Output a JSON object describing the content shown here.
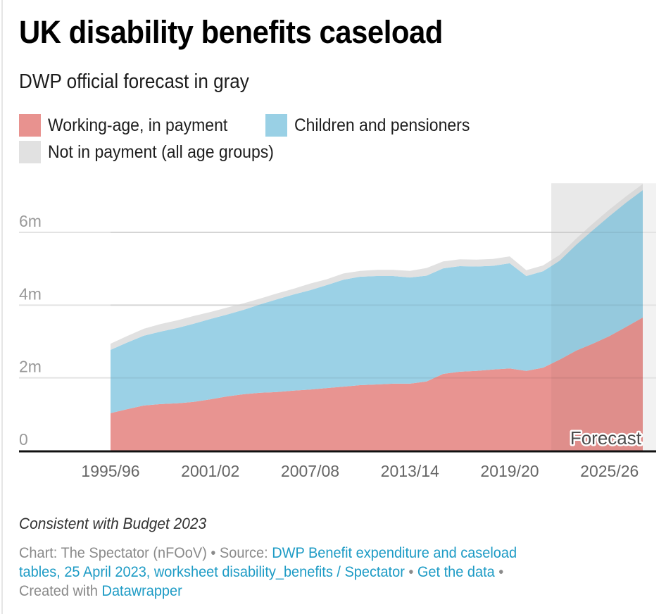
{
  "header": {
    "title": "UK disability benefits caseload",
    "subtitle": "DWP official forecast in gray"
  },
  "legend": [
    {
      "label": "Working-age, in payment",
      "color": "#e8928f"
    },
    {
      "label": "Children and pensioners",
      "color": "#99d0e5"
    },
    {
      "label": "Not in payment (all age groups)",
      "color": "#e1e1e1"
    }
  ],
  "chart_data": {
    "type": "area",
    "stacked": true,
    "title": "UK disability benefits caseload",
    "subtitle": "DWP official forecast in gray",
    "xlabel": "",
    "ylabel": "",
    "x": [
      "1995/96",
      "1996/97",
      "1997/98",
      "1998/99",
      "1999/00",
      "2000/01",
      "2001/02",
      "2002/03",
      "2003/04",
      "2004/05",
      "2005/06",
      "2006/07",
      "2007/08",
      "2008/09",
      "2009/10",
      "2010/11",
      "2011/12",
      "2012/13",
      "2013/14",
      "2014/15",
      "2015/16",
      "2016/17",
      "2017/18",
      "2018/19",
      "2019/20",
      "2020/21",
      "2021/22",
      "2022/23",
      "2023/24",
      "2024/25",
      "2025/26",
      "2026/27",
      "2027/28"
    ],
    "x_ticks": [
      "1995/96",
      "2001/02",
      "2007/08",
      "2013/14",
      "2019/20",
      "2025/26"
    ],
    "y_ticks": [
      {
        "value": 0,
        "label": "0"
      },
      {
        "value": 2,
        "label": "2m"
      },
      {
        "value": 4,
        "label": "4m"
      },
      {
        "value": 6,
        "label": "6m"
      }
    ],
    "ylim": [
      0,
      7.35
    ],
    "units": "millions",
    "grid": true,
    "legend_position": "top-left",
    "series": [
      {
        "name": "Working-age, in payment",
        "color": "#e8928f",
        "values": [
          1.03,
          1.14,
          1.24,
          1.28,
          1.3,
          1.34,
          1.41,
          1.49,
          1.55,
          1.59,
          1.61,
          1.65,
          1.68,
          1.72,
          1.76,
          1.8,
          1.82,
          1.84,
          1.84,
          1.9,
          2.11,
          2.17,
          2.19,
          2.23,
          2.26,
          2.19,
          2.28,
          2.5,
          2.75,
          2.94,
          3.15,
          3.4,
          3.66
        ]
      },
      {
        "name": "Children and pensioners",
        "color": "#99d0e5",
        "values": [
          1.74,
          1.83,
          1.92,
          1.99,
          2.07,
          2.15,
          2.21,
          2.25,
          2.32,
          2.43,
          2.55,
          2.64,
          2.73,
          2.83,
          2.94,
          2.98,
          2.98,
          2.96,
          2.92,
          2.91,
          2.9,
          2.9,
          2.87,
          2.85,
          2.89,
          2.61,
          2.65,
          2.72,
          2.91,
          3.12,
          3.3,
          3.42,
          3.5
        ]
      },
      {
        "name": "Not in payment (all age groups)",
        "color": "#e1e1e1",
        "values": [
          0.17,
          0.18,
          0.19,
          0.21,
          0.21,
          0.21,
          0.19,
          0.19,
          0.18,
          0.16,
          0.16,
          0.16,
          0.18,
          0.16,
          0.17,
          0.16,
          0.17,
          0.17,
          0.18,
          0.21,
          0.19,
          0.19,
          0.19,
          0.19,
          0.19,
          0.16,
          0.16,
          0.16,
          0.17,
          0.18,
          0.18,
          0.17,
          0.17
        ]
      }
    ],
    "annotations": [
      {
        "type": "shaded-range",
        "from": "2021/22",
        "to": "2027/28",
        "label": "Forecast",
        "color": "#f2f2f2"
      }
    ]
  },
  "footer": {
    "note": "Consistent with Budget 2023",
    "chart_prefix": "Chart: The Spectator (nFOoV) • Source: ",
    "source_link_1": "DWP Benefit expenditure and caseload",
    "source_link_2": "tables, 25 April 2023, worksheet disability_benefits / Spectator",
    "sep_1": " • ",
    "get_data": "Get the data",
    "sep_2": " •",
    "created_prefix": "Created with ",
    "created_link": "Datawrapper"
  }
}
